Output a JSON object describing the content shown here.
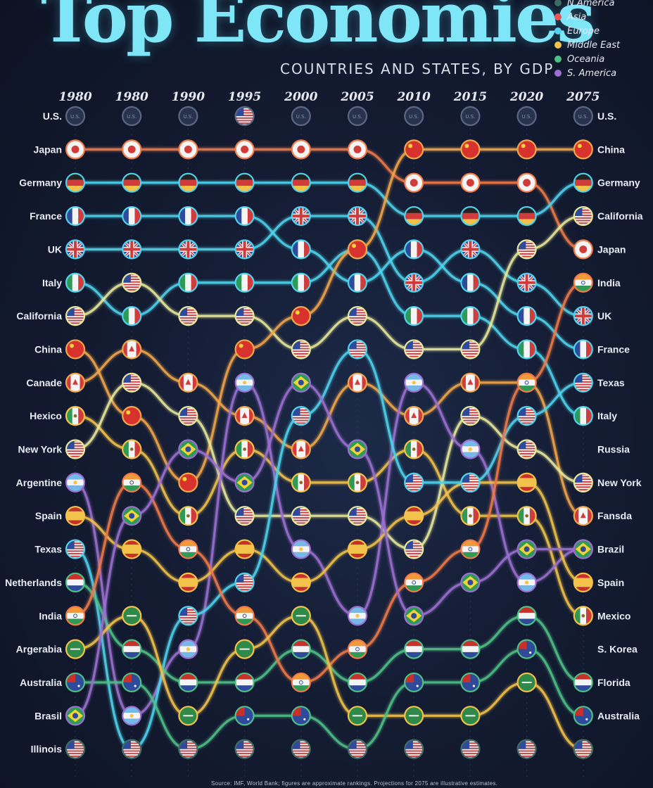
{
  "title": "Top Economies",
  "subtitle": "COUNTRIES AND STATES, BY GDP",
  "legend": [
    {
      "label": "N America",
      "color": "#3d6b64"
    },
    {
      "label": "Asia",
      "color": "#e8545a"
    },
    {
      "label": "Europe",
      "color": "#4fd3ec"
    },
    {
      "label": "Middle East",
      "color": "#f2c24a"
    },
    {
      "label": "Oceania",
      "color": "#4fbf86"
    },
    {
      "label": "S. America",
      "color": "#9b6fd0"
    }
  ],
  "footer": "Source: IMF, World Bank; figures are approximate rankings. Projections for 2075 are illustrative estimates.",
  "chart_data": {
    "type": "bump",
    "title": "Top Economies",
    "subtitle": "COUNTRIES AND STATES, BY GDP",
    "years": [
      "1980",
      "1980",
      "1990",
      "1995",
      "2000",
      "2005",
      "2010",
      "2015",
      "2020",
      "2075"
    ],
    "left_labels": [
      "U.S.",
      "Japan",
      "Germany",
      "France",
      "UK",
      "Italy",
      "California",
      "China",
      "Canade",
      "Hexico",
      "New York",
      "Argentine",
      "Spain",
      "Texas",
      "Netherlands",
      "India",
      "Argerabia",
      "Australia",
      "Brasil",
      "Illinois"
    ],
    "right_labels": [
      "U.S.",
      "China",
      "Germany",
      "California",
      "Japan",
      "India",
      "UK",
      "France",
      "Texas",
      "Italy",
      "Russia",
      "New York",
      "Fansda",
      "Brazil",
      "Spain",
      "Mexico",
      "S. Korea",
      "Florida",
      "Australia"
    ],
    "y_axis": "rank (1 = largest)",
    "series": [
      {
        "name": "U.S.",
        "color": "#3d6b64",
        "flag": "us",
        "ranks": [
          1,
          1,
          1,
          1,
          1,
          1,
          1,
          1,
          1,
          1
        ]
      },
      {
        "name": "Japan",
        "color": "#f07a4a",
        "flag": "jp",
        "ranks": [
          2,
          2,
          2,
          2,
          2,
          2,
          3,
          3,
          3,
          5
        ]
      },
      {
        "name": "Germany",
        "color": "#4fd3ec",
        "flag": "de",
        "ranks": [
          3,
          3,
          3,
          3,
          3,
          3,
          4,
          4,
          4,
          3
        ]
      },
      {
        "name": "France",
        "color": "#4fd3ec",
        "flag": "fr",
        "ranks": [
          4,
          4,
          4,
          4,
          5,
          6,
          5,
          6,
          7,
          8
        ]
      },
      {
        "name": "UK",
        "color": "#4fd3ec",
        "flag": "uk",
        "ranks": [
          5,
          5,
          5,
          5,
          4,
          4,
          6,
          5,
          6,
          7
        ]
      },
      {
        "name": "Italy",
        "color": "#4fd3ec",
        "flag": "it",
        "ranks": [
          6,
          7,
          6,
          6,
          6,
          5,
          7,
          7,
          8,
          10
        ]
      },
      {
        "name": "California",
        "color": "#e8e89a",
        "flag": "us",
        "ranks": [
          7,
          6,
          7,
          7,
          8,
          7,
          8,
          8,
          5,
          4
        ]
      },
      {
        "name": "China",
        "color": "#f2a64a",
        "flag": "cn",
        "ranks": [
          8,
          10,
          12,
          8,
          7,
          5,
          2,
          2,
          2,
          2
        ]
      },
      {
        "name": "Canade",
        "color": "#f2a64a",
        "flag": "ca",
        "ranks": [
          9,
          8,
          9,
          10,
          11,
          9,
          10,
          9,
          9,
          13
        ]
      },
      {
        "name": "Hexico",
        "color": "#f2c24a",
        "flag": "mx",
        "ranks": [
          10,
          11,
          13,
          11,
          12,
          12,
          11,
          13,
          13,
          16
        ]
      },
      {
        "name": "New York",
        "color": "#e8e89a",
        "flag": "us",
        "ranks": [
          11,
          9,
          10,
          13,
          13,
          13,
          14,
          10,
          11,
          12
        ]
      },
      {
        "name": "Argentine",
        "color": "#9b6fd0",
        "flag": "ar",
        "ranks": [
          12,
          19,
          17,
          9,
          14,
          16,
          9,
          11,
          15,
          14
        ]
      },
      {
        "name": "Spain",
        "color": "#f2c24a",
        "flag": "es",
        "ranks": [
          13,
          14,
          15,
          14,
          15,
          14,
          13,
          12,
          12,
          15
        ]
      },
      {
        "name": "Texas",
        "color": "#4fd3ec",
        "flag": "us",
        "ranks": [
          14,
          20,
          16,
          15,
          10,
          8,
          12,
          12,
          10,
          9
        ]
      },
      {
        "name": "Netherlands",
        "color": "#4fbf86",
        "flag": "nl",
        "ranks": [
          15,
          17,
          18,
          18,
          17,
          18,
          17,
          17,
          16,
          18
        ]
      },
      {
        "name": "India",
        "color": "#f07a4a",
        "flag": "in",
        "ranks": [
          16,
          12,
          14,
          16,
          18,
          17,
          15,
          14,
          9,
          6
        ]
      },
      {
        "name": "Argerabia",
        "color": "#f2c24a",
        "flag": "sa",
        "ranks": [
          17,
          16,
          19,
          17,
          16,
          19,
          19,
          19,
          18,
          20
        ]
      },
      {
        "name": "Australia",
        "color": "#4fbf86",
        "flag": "au",
        "ranks": [
          18,
          18,
          20,
          19,
          19,
          20,
          18,
          18,
          17,
          19
        ]
      },
      {
        "name": "Brasil",
        "color": "#9b6fd0",
        "flag": "br",
        "ranks": [
          19,
          13,
          11,
          12,
          9,
          11,
          16,
          15,
          14,
          14
        ]
      },
      {
        "name": "Illinois",
        "color": "#3d6b64",
        "flag": "us",
        "ranks": [
          20,
          20,
          20,
          20,
          20,
          20,
          20,
          20,
          20,
          20
        ]
      }
    ]
  }
}
